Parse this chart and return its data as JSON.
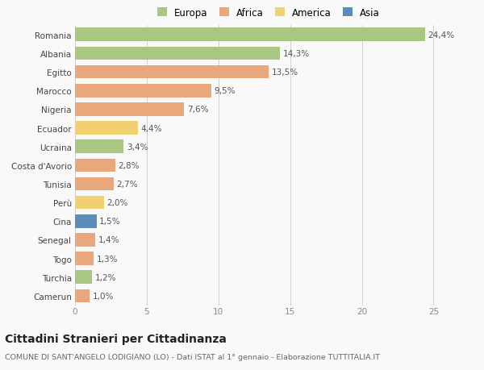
{
  "countries": [
    "Romania",
    "Albania",
    "Egitto",
    "Marocco",
    "Nigeria",
    "Ecuador",
    "Ucraina",
    "Costa d'Avorio",
    "Tunisia",
    "Perù",
    "Cina",
    "Senegal",
    "Togo",
    "Turchia",
    "Camerun"
  ],
  "values": [
    24.4,
    14.3,
    13.5,
    9.5,
    7.6,
    4.4,
    3.4,
    2.8,
    2.7,
    2.0,
    1.5,
    1.4,
    1.3,
    1.2,
    1.0
  ],
  "categories": [
    "Europa",
    "Europa",
    "Africa",
    "Africa",
    "Africa",
    "America",
    "Europa",
    "Africa",
    "Africa",
    "America",
    "Asia",
    "Africa",
    "Africa",
    "Europa",
    "Africa"
  ],
  "category_colors": {
    "Europa": "#a8c882",
    "Africa": "#e8a87c",
    "America": "#f0d070",
    "Asia": "#5b8db8"
  },
  "legend_labels": [
    "Europa",
    "Africa",
    "America",
    "Asia"
  ],
  "legend_colors": [
    "#a8c882",
    "#e8a87c",
    "#f0d070",
    "#5b8db8"
  ],
  "title": "Cittadini Stranieri per Cittadinanza",
  "subtitle": "COMUNE DI SANT'ANGELO LODIGIANO (LO) - Dati ISTAT al 1° gennaio - Elaborazione TUTTITALIA.IT",
  "xlim": [
    0,
    27
  ],
  "xticks": [
    0,
    5,
    10,
    15,
    20,
    25
  ],
  "background_color": "#f9f9f9",
  "bar_height": 0.72,
  "label_fontsize": 7.5,
  "tick_fontsize": 7.5,
  "title_fontsize": 10,
  "subtitle_fontsize": 6.8,
  "legend_fontsize": 8.5
}
